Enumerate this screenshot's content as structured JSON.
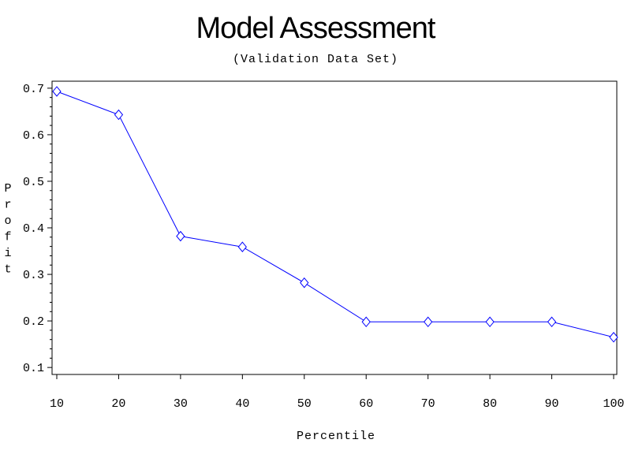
{
  "chart_data": {
    "type": "line",
    "title": "Model Assessment",
    "subtitle": "(Validation Data Set)",
    "xlabel": "Percentile",
    "ylabel": "Profit",
    "x": [
      10,
      20,
      30,
      40,
      50,
      60,
      70,
      80,
      90,
      100
    ],
    "series": [
      {
        "values": [
          0.693,
          0.643,
          0.382,
          0.359,
          0.282,
          0.198,
          0.198,
          0.198,
          0.198,
          0.165
        ],
        "color": "#0000ff",
        "marker": "diamond"
      }
    ],
    "xlim": [
      10,
      100
    ],
    "ylim": [
      0.085,
      0.715
    ],
    "xticks": [
      "10",
      "20",
      "30",
      "40",
      "50",
      "60",
      "70",
      "80",
      "90",
      "100"
    ],
    "yticks": [
      "0.1",
      "0.2",
      "0.3",
      "0.4",
      "0.5",
      "0.6",
      "0.7"
    ],
    "grid": false,
    "legend": "none"
  }
}
